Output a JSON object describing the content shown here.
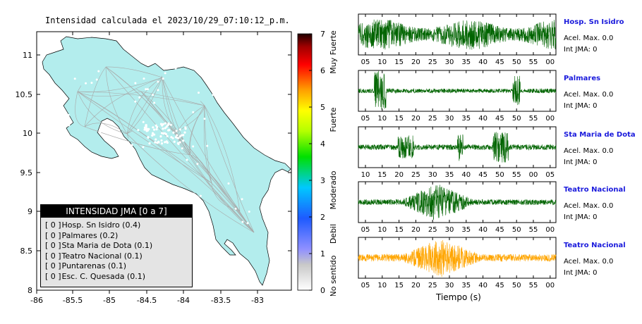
{
  "map": {
    "title": "Intensidad calculada el 2023/10/29_07:10:12_p.m.",
    "lon_ticks": [
      "-86",
      "-85.5",
      "-85",
      "-84.5",
      "-84",
      "-83.5",
      "-83"
    ],
    "lat_ticks": [
      "11",
      "10.5",
      "10",
      "9.5",
      "9",
      "8.5",
      "8"
    ],
    "land_color": "#b3eded"
  },
  "legend": {
    "title": "INTENSIDAD JMA [0 a 7]",
    "items": [
      {
        "code": "[ 0 ]",
        "label": "Hosp. Sn Isidro (0.4)"
      },
      {
        "code": "[ 0 ]",
        "label": "Palmares (0.2)"
      },
      {
        "code": "[ 0 ]",
        "label": "Sta Maria de Dota (0.1)"
      },
      {
        "code": "[ 0 ]",
        "label": "Teatro Nacional (0.1)"
      },
      {
        "code": "[ 0 ]",
        "label": "Puntarenas (0.1)"
      },
      {
        "code": "[ 0 ]",
        "label": "Esc. C. Quesada (0.1)"
      }
    ]
  },
  "scale": {
    "ticks": [
      "7",
      "6",
      "5",
      "4",
      "3",
      "2",
      "1",
      "0"
    ],
    "labels": [
      "Muy Fuerte",
      "Fuerte",
      "Moderado",
      "Debil",
      "No sentido"
    ]
  },
  "traces": [
    {
      "name": "Hosp. Sn Isidro",
      "acel": "Acel. Max. 0.0",
      "int": "Int JMA: 0",
      "color": "#006400",
      "ticks": [
        "05",
        "10",
        "15",
        "20",
        "25",
        "30",
        "35",
        "40",
        "45",
        "50",
        "55",
        "00"
      ]
    },
    {
      "name": "Palmares",
      "acel": "Acel. Max. 0.0",
      "int": "Int JMA: 0",
      "color": "#006400",
      "ticks": [
        "05",
        "10",
        "15",
        "20",
        "25",
        "30",
        "35",
        "40",
        "45",
        "50",
        "55",
        "00"
      ]
    },
    {
      "name": "Sta Maria de Dota",
      "acel": "Acel. Max. 0.0",
      "int": "Int JMA: 0",
      "color": "#006400",
      "ticks": [
        "10",
        "15",
        "20",
        "25",
        "30",
        "35",
        "40",
        "45",
        "50",
        "55",
        "00",
        "05"
      ]
    },
    {
      "name": "Teatro Nacional",
      "acel": "Acel. Max. 0.0",
      "int": "Int JMA: 0",
      "color": "#006400",
      "ticks": [
        "05",
        "10",
        "15",
        "20",
        "25",
        "30",
        "35",
        "40",
        "45",
        "50",
        "55",
        "00"
      ]
    },
    {
      "name": "Teatro Nacional",
      "acel": "Acel. Max. 0.0",
      "int": "Int JMA: 0",
      "color": "#ffa500",
      "ticks": [
        "05",
        "10",
        "15",
        "20",
        "25",
        "30",
        "35",
        "40",
        "45",
        "50",
        "55",
        "00"
      ]
    }
  ],
  "xaxis_label": "Tiempo (s)"
}
